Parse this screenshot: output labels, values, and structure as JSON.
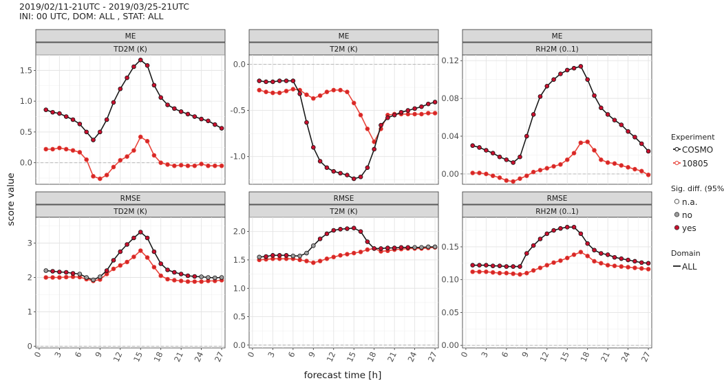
{
  "header": {
    "line1": "2019/02/11-21UTC - 2019/03/25-21UTC",
    "line2": "INI: 00 UTC, DOM:  ALL , STAT: ALL"
  },
  "axes": {
    "ylabel": "score value",
    "xlabel": "forecast time [h]",
    "xticks": [
      "0",
      "3",
      "6",
      "9",
      "12",
      "15",
      "18",
      "21",
      "24",
      "27"
    ]
  },
  "legend": {
    "experiment_title": "Experiment",
    "experiments": [
      {
        "label": "COSMO",
        "color": "#000000"
      },
      {
        "label": "10805",
        "color": "#e8443a"
      }
    ],
    "sig_title": "Sig. diff. (95%)",
    "sig": [
      {
        "label": "n.a.",
        "fill": "#ffffff"
      },
      {
        "label": "no",
        "fill": "#9e9e9e"
      },
      {
        "label": "yes",
        "fill": "#c8102e"
      }
    ],
    "domain_title": "Domain",
    "domain_label": "ALL"
  },
  "colors": {
    "cosmo_line": "#1a1a1a",
    "exp_line": "#e8443a",
    "panel_bg": "#ffffff",
    "grid": "#e3e3e3",
    "strip_bg": "#d9d9d9",
    "sig_yes": "#c8102e",
    "sig_no": "#9e9e9e"
  },
  "chart_data": [
    {
      "type": "line",
      "stat": "ME",
      "variable": "TD2M (K)",
      "x": [
        1,
        2,
        3,
        4,
        5,
        6,
        7,
        8,
        9,
        10,
        11,
        12,
        13,
        14,
        15,
        16,
        17,
        18,
        19,
        20,
        21,
        22,
        23,
        24,
        25,
        26,
        27
      ],
      "ylim": [
        -0.35,
        1.75
      ],
      "yticks": [
        0.0,
        0.5,
        1.0,
        1.5
      ],
      "series": [
        {
          "name": "COSMO",
          "values": [
            0.86,
            0.82,
            0.8,
            0.75,
            0.7,
            0.63,
            0.5,
            0.37,
            0.5,
            0.7,
            0.98,
            1.2,
            1.38,
            1.56,
            1.67,
            1.58,
            1.26,
            1.06,
            0.94,
            0.88,
            0.83,
            0.79,
            0.75,
            0.71,
            0.68,
            0.62,
            0.56
          ],
          "sig": "yes"
        },
        {
          "name": "10805",
          "values": [
            0.22,
            0.22,
            0.24,
            0.22,
            0.2,
            0.17,
            0.05,
            -0.22,
            -0.26,
            -0.2,
            -0.07,
            0.04,
            0.1,
            0.2,
            0.42,
            0.35,
            0.12,
            0.0,
            -0.03,
            -0.05,
            -0.04,
            -0.05,
            -0.05,
            -0.02,
            -0.05,
            -0.05,
            -0.05
          ],
          "sig": "yes"
        }
      ]
    },
    {
      "type": "line",
      "stat": "ME",
      "variable": "T2M (K)",
      "x": [
        1,
        2,
        3,
        4,
        5,
        6,
        7,
        8,
        9,
        10,
        11,
        12,
        13,
        14,
        15,
        16,
        17,
        18,
        19,
        20,
        21,
        22,
        23,
        24,
        25,
        26,
        27
      ],
      "ylim": [
        -1.3,
        0.1
      ],
      "yticks": [
        -1.0,
        -0.5,
        0.0
      ],
      "series": [
        {
          "name": "COSMO",
          "values": [
            -0.18,
            -0.19,
            -0.19,
            -0.18,
            -0.18,
            -0.18,
            -0.32,
            -0.63,
            -0.9,
            -1.05,
            -1.12,
            -1.16,
            -1.18,
            -1.2,
            -1.24,
            -1.22,
            -1.12,
            -0.92,
            -0.66,
            -0.58,
            -0.55,
            -0.52,
            -0.5,
            -0.48,
            -0.46,
            -0.43,
            -0.41
          ],
          "sig": "yes"
        },
        {
          "name": "10805",
          "values": [
            -0.28,
            -0.3,
            -0.31,
            -0.31,
            -0.29,
            -0.27,
            -0.28,
            -0.33,
            -0.37,
            -0.34,
            -0.3,
            -0.28,
            -0.28,
            -0.3,
            -0.42,
            -0.55,
            -0.7,
            -0.84,
            -0.7,
            -0.55,
            -0.54,
            -0.54,
            -0.54,
            -0.54,
            -0.54,
            -0.53,
            -0.53
          ],
          "sig": "yes"
        }
      ]
    },
    {
      "type": "line",
      "stat": "ME",
      "variable": "RH2M (0..1)",
      "x": [
        1,
        2,
        3,
        4,
        5,
        6,
        7,
        8,
        9,
        10,
        11,
        12,
        13,
        14,
        15,
        16,
        17,
        18,
        19,
        20,
        21,
        22,
        23,
        24,
        25,
        26,
        27
      ],
      "ylim": [
        -0.011,
        0.126
      ],
      "yticks": [
        0.0,
        0.04,
        0.08,
        0.12
      ],
      "series": [
        {
          "name": "COSMO",
          "values": [
            0.03,
            0.028,
            0.025,
            0.022,
            0.018,
            0.015,
            0.012,
            0.018,
            0.04,
            0.063,
            0.082,
            0.093,
            0.1,
            0.106,
            0.11,
            0.112,
            0.114,
            0.1,
            0.083,
            0.07,
            0.063,
            0.057,
            0.052,
            0.045,
            0.039,
            0.032,
            0.024
          ],
          "sig": "yes"
        },
        {
          "name": "10805",
          "values": [
            0.001,
            0.001,
            0.0,
            -0.002,
            -0.004,
            -0.007,
            -0.008,
            -0.005,
            -0.002,
            0.002,
            0.004,
            0.006,
            0.008,
            0.01,
            0.015,
            0.022,
            0.033,
            0.034,
            0.025,
            0.015,
            0.012,
            0.011,
            0.009,
            0.007,
            0.005,
            0.003,
            -0.001
          ],
          "sig": "yes"
        }
      ]
    },
    {
      "type": "line",
      "stat": "RMSE",
      "variable": "TD2M (K)",
      "x": [
        1,
        2,
        3,
        4,
        5,
        6,
        7,
        8,
        9,
        10,
        11,
        12,
        13,
        14,
        15,
        16,
        17,
        18,
        19,
        20,
        21,
        22,
        23,
        24,
        25,
        26,
        27
      ],
      "ylim": [
        -0.05,
        3.75
      ],
      "yticks": [
        0,
        1,
        2,
        3
      ],
      "series": [
        {
          "name": "COSMO",
          "values": [
            2.2,
            2.18,
            2.16,
            2.15,
            2.12,
            2.1,
            2.0,
            1.93,
            2.02,
            2.2,
            2.5,
            2.75,
            2.96,
            3.15,
            3.32,
            3.15,
            2.75,
            2.4,
            2.22,
            2.15,
            2.1,
            2.05,
            2.03,
            2.02,
            2.0,
            1.99,
            2.0
          ],
          "sig": "no"
        },
        {
          "name": "10805",
          "values": [
            2.0,
            2.0,
            2.0,
            2.01,
            2.02,
            2.01,
            1.95,
            1.9,
            1.94,
            2.1,
            2.25,
            2.35,
            2.45,
            2.6,
            2.78,
            2.58,
            2.3,
            2.05,
            1.95,
            1.92,
            1.9,
            1.88,
            1.88,
            1.88,
            1.9,
            1.9,
            1.92
          ],
          "sig": "yes"
        }
      ]
    },
    {
      "type": "line",
      "stat": "RMSE",
      "variable": "T2M (K)",
      "x": [
        1,
        2,
        3,
        4,
        5,
        6,
        7,
        8,
        9,
        10,
        11,
        12,
        13,
        14,
        15,
        16,
        17,
        18,
        19,
        20,
        21,
        22,
        23,
        24,
        25,
        26,
        27
      ],
      "ylim": [
        -0.05,
        2.25
      ],
      "yticks": [
        0.0,
        0.5,
        1.0,
        1.5,
        2.0
      ],
      "series": [
        {
          "name": "COSMO",
          "values": [
            1.55,
            1.56,
            1.58,
            1.58,
            1.58,
            1.57,
            1.57,
            1.62,
            1.75,
            1.87,
            1.96,
            2.02,
            2.04,
            2.05,
            2.06,
            2.0,
            1.82,
            1.7,
            1.7,
            1.71,
            1.71,
            1.72,
            1.72,
            1.72,
            1.72,
            1.73,
            1.73
          ],
          "sig": "no"
        },
        {
          "name": "10805",
          "values": [
            1.5,
            1.51,
            1.52,
            1.52,
            1.52,
            1.52,
            1.5,
            1.48,
            1.45,
            1.48,
            1.52,
            1.55,
            1.58,
            1.6,
            1.62,
            1.64,
            1.68,
            1.7,
            1.65,
            1.66,
            1.68,
            1.69,
            1.7,
            1.7,
            1.7,
            1.71,
            1.72
          ],
          "sig": "yes"
        }
      ]
    },
    {
      "type": "line",
      "stat": "RMSE",
      "variable": "RH2M (0..1)",
      "x": [
        1,
        2,
        3,
        4,
        5,
        6,
        7,
        8,
        9,
        10,
        11,
        12,
        13,
        14,
        15,
        16,
        17,
        18,
        19,
        20,
        21,
        22,
        23,
        24,
        25,
        26,
        27
      ],
      "ylim": [
        -0.004,
        0.195
      ],
      "yticks": [
        0.0,
        0.05,
        0.1,
        0.15
      ],
      "series": [
        {
          "name": "COSMO",
          "values": [
            0.122,
            0.122,
            0.122,
            0.121,
            0.121,
            0.12,
            0.12,
            0.12,
            0.14,
            0.152,
            0.162,
            0.17,
            0.175,
            0.178,
            0.18,
            0.18,
            0.17,
            0.155,
            0.145,
            0.14,
            0.138,
            0.134,
            0.132,
            0.13,
            0.128,
            0.126,
            0.125
          ],
          "sig": "yes"
        },
        {
          "name": "10805",
          "values": [
            0.112,
            0.112,
            0.112,
            0.111,
            0.11,
            0.11,
            0.109,
            0.108,
            0.11,
            0.114,
            0.118,
            0.122,
            0.126,
            0.129,
            0.133,
            0.138,
            0.142,
            0.136,
            0.128,
            0.125,
            0.122,
            0.121,
            0.12,
            0.119,
            0.118,
            0.117,
            0.116
          ],
          "sig": "yes"
        }
      ]
    }
  ]
}
